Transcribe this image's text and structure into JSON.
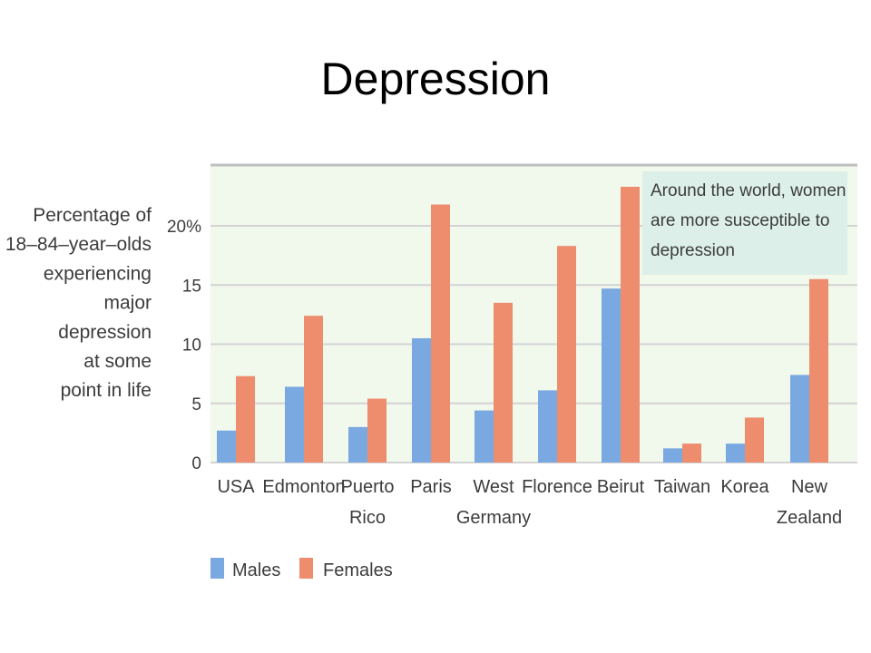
{
  "slide": {
    "title": "Depression"
  },
  "chart_data": {
    "type": "bar",
    "ylabel_lines": [
      "Percentage of",
      "18–84–year–olds",
      "experiencing",
      "major",
      "depression",
      "at some",
      "point in life"
    ],
    "yticks": [
      {
        "value": 0,
        "label": "0"
      },
      {
        "value": 5,
        "label": "5"
      },
      {
        "value": 10,
        "label": "10"
      },
      {
        "value": 15,
        "label": "15"
      },
      {
        "value": 20,
        "label": "20%"
      }
    ],
    "ylim": [
      0,
      25
    ],
    "grid": true,
    "categories": [
      [
        "USA"
      ],
      [
        "Edmonton"
      ],
      [
        "Puerto",
        "Rico"
      ],
      [
        "Paris"
      ],
      [
        "West",
        "Germany"
      ],
      [
        "Florence"
      ],
      [
        "Beirut"
      ],
      [
        "Taiwan"
      ],
      [
        "Korea"
      ],
      [
        "New",
        "Zealand"
      ]
    ],
    "series": [
      {
        "name": "Males",
        "color": "#7aa8e0",
        "values": [
          2.7,
          6.4,
          3.0,
          10.5,
          4.4,
          6.1,
          14.7,
          1.2,
          1.6,
          7.4
        ]
      },
      {
        "name": "Females",
        "color": "#ee8c6e",
        "values": [
          7.3,
          12.4,
          5.4,
          21.8,
          13.5,
          18.3,
          23.3,
          1.6,
          3.8,
          15.5
        ]
      }
    ],
    "legend_position": "bottom-left",
    "annotation": {
      "lines": [
        "Around the world, women",
        "are more susceptible to",
        "depression"
      ],
      "position": "top-right",
      "background": "#ddefe9"
    },
    "plot_background": "#f1f8ec",
    "grid_color": "#d3d3d3"
  }
}
